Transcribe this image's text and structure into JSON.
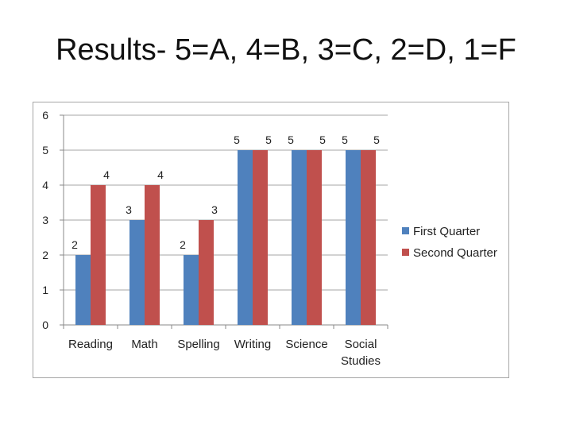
{
  "slide": {
    "title": "Results- 5=A, 4=B, 3=C, 2=D, 1=F"
  },
  "chart_data": {
    "type": "bar",
    "categories": [
      [
        "Reading"
      ],
      [
        "Math"
      ],
      [
        "Spelling"
      ],
      [
        "Writing"
      ],
      [
        "Science"
      ],
      [
        "Social",
        "Studies"
      ]
    ],
    "series": [
      {
        "name": "First Quarter",
        "values": [
          2,
          3,
          2,
          5,
          5,
          5
        ],
        "color": "#4f81bd"
      },
      {
        "name": "Second Quarter",
        "values": [
          4,
          4,
          3,
          5,
          5,
          5
        ],
        "color": "#c0504d"
      }
    ],
    "ylim": [
      0,
      6
    ],
    "yticks": [
      0,
      1,
      2,
      3,
      4,
      5,
      6
    ],
    "grid": true,
    "legend": "right",
    "data_labels": true
  }
}
